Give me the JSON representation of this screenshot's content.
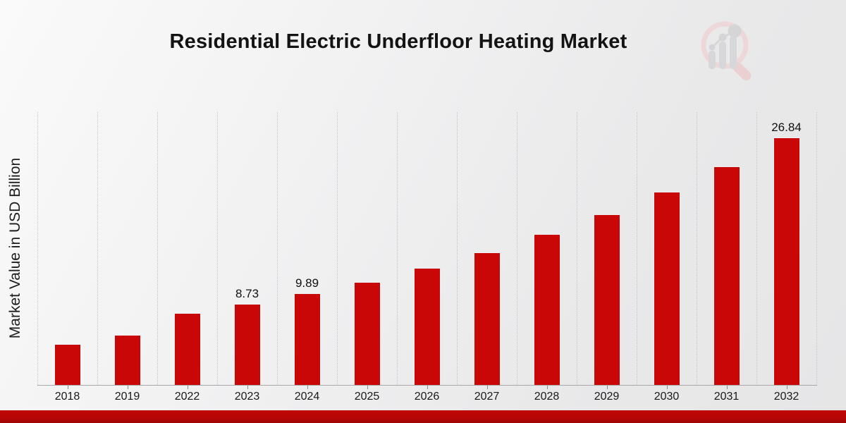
{
  "chart_data": {
    "type": "bar",
    "title": "Residential Electric Underfloor Heating Market",
    "ylabel": "Market Value in USD Billion",
    "xlabel": "",
    "categories": [
      "2018",
      "2019",
      "2022",
      "2023",
      "2024",
      "2025",
      "2026",
      "2027",
      "2028",
      "2029",
      "2030",
      "2031",
      "2032"
    ],
    "values": [
      4.36,
      5.33,
      7.73,
      8.73,
      9.89,
      11.15,
      12.68,
      14.37,
      16.36,
      18.48,
      20.95,
      23.7,
      26.84
    ],
    "data_labels": [
      null,
      null,
      null,
      "8.73",
      "9.89",
      null,
      null,
      null,
      null,
      null,
      null,
      null,
      "26.84"
    ],
    "ylim": [
      0,
      29.7
    ],
    "grid": "vertical-dotted",
    "legend": "none",
    "bar_color": "#c90707"
  },
  "colors": {
    "bar": "#c90707",
    "bottom_strip": "#b40505",
    "gridline": "#c3c3c4",
    "axis": "#a8a8a8",
    "title_text": "#131313"
  },
  "watermark": {
    "icon": "magnifier-bar-chart-logo"
  }
}
